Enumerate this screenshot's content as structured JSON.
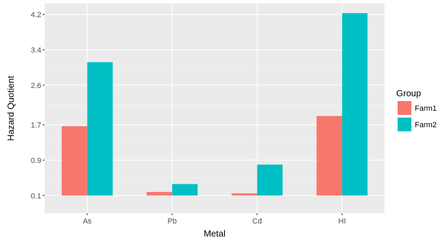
{
  "chart_data": {
    "type": "bar",
    "xlabel": "Metal",
    "ylabel": "Hazard Quotient",
    "categories": [
      "As",
      "Pb",
      "Cd",
      "HI"
    ],
    "series": [
      {
        "name": "Farm1",
        "values": [
          1.67,
          0.18,
          0.15,
          1.9
        ]
      },
      {
        "name": "Farm2",
        "values": [
          3.12,
          0.36,
          0.8,
          4.23
        ]
      }
    ],
    "baseline": 0.1,
    "yticks": [
      0.1,
      0.9,
      1.7,
      2.6,
      3.4,
      4.2
    ],
    "ytick_labels": [
      "0.1",
      "0.9",
      "1.7",
      "2.6",
      "3.4",
      "4.2"
    ],
    "ylim": [
      -0.3,
      4.45
    ],
    "legend": {
      "title": "Group",
      "position": "right"
    },
    "grid": true,
    "colors": {
      "Farm1": "#F8766D",
      "Farm2": "#00BFC4",
      "panel": "#EBEBEB",
      "grid_major": "#FFFFFF",
      "grid_minor": "#F5F5F5"
    }
  }
}
